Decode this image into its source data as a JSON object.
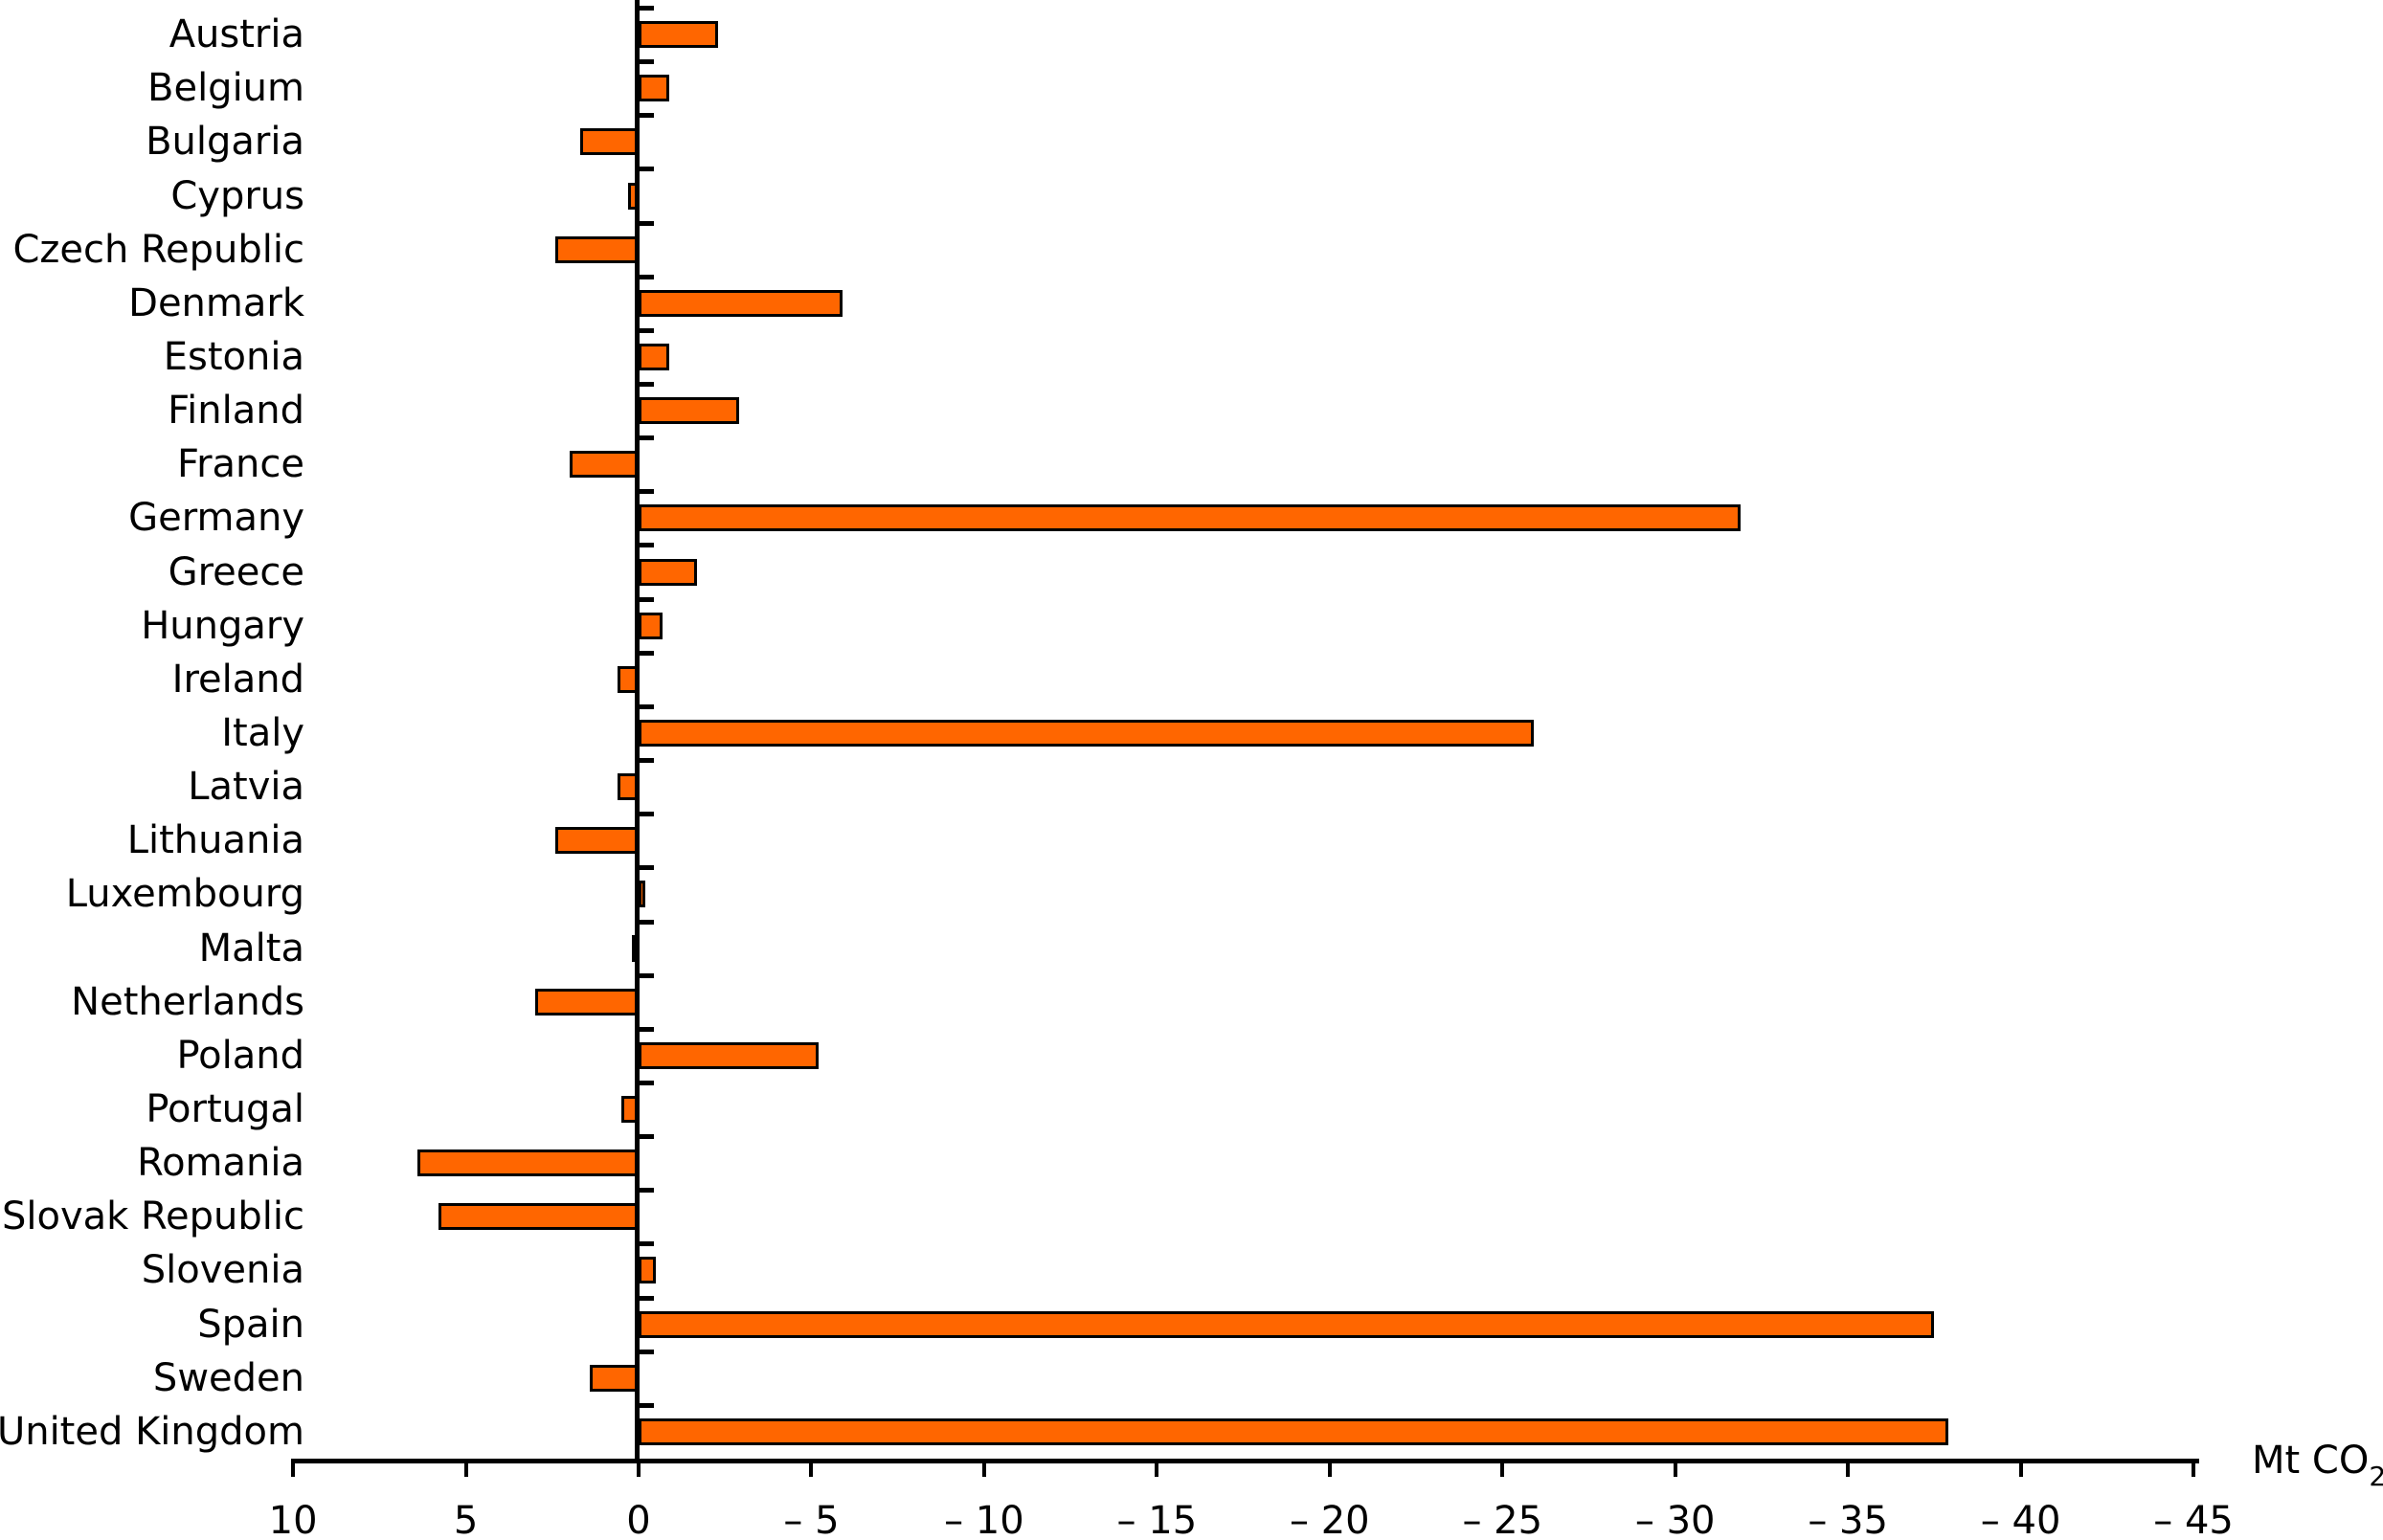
{
  "chart_data": {
    "type": "bar",
    "orientation": "horizontal-diverging",
    "title": "",
    "unit_label": {
      "text": "Mt CO",
      "subscript": "2"
    },
    "axis": {
      "left_value": 10,
      "right_value": -45,
      "tick_step": 5,
      "inverted": true,
      "note": "positive values extend left of zero line, negative values extend right"
    },
    "x_ticks": [
      {
        "value": 10,
        "label": "10"
      },
      {
        "value": 5,
        "label": "5"
      },
      {
        "value": 0,
        "label": "0"
      },
      {
        "value": -5,
        "label": "– 5"
      },
      {
        "value": -10,
        "label": "– 10"
      },
      {
        "value": -15,
        "label": "– 15"
      },
      {
        "value": -20,
        "label": "– 20"
      },
      {
        "value": -25,
        "label": "– 25"
      },
      {
        "value": -30,
        "label": "– 30"
      },
      {
        "value": -35,
        "label": "– 35"
      },
      {
        "value": -40,
        "label": "– 40"
      },
      {
        "value": -45,
        "label": "– 45"
      }
    ],
    "categories": [
      "Austria",
      "Belgium",
      "Bulgaria",
      "Cyprus",
      "Czech Republic",
      "Denmark",
      "Estonia",
      "Finland",
      "France",
      "Germany",
      "Greece",
      "Hungary",
      "Ireland",
      "Italy",
      "Latvia",
      "Lithuania",
      "Luxembourg",
      "Malta",
      "Netherlands",
      "Poland",
      "Portugal",
      "Romania",
      "Slovak Republic",
      "Slovenia",
      "Spain",
      "Sweden",
      "United Kingdom"
    ],
    "values": [
      -2.3,
      -0.9,
      1.7,
      0.3,
      2.4,
      -5.9,
      -0.9,
      -2.9,
      2.0,
      -31.9,
      -1.7,
      -0.7,
      0.6,
      -25.9,
      0.6,
      2.4,
      -0.1,
      0.1,
      3.0,
      -5.2,
      0.5,
      6.4,
      5.8,
      -0.5,
      -37.5,
      1.4,
      -37.9
    ],
    "bar_color": "#ff6600",
    "bar_border_color": "#000000",
    "axis_color": "#000000",
    "text_color": "#000000",
    "background_color": "#ffffff"
  }
}
